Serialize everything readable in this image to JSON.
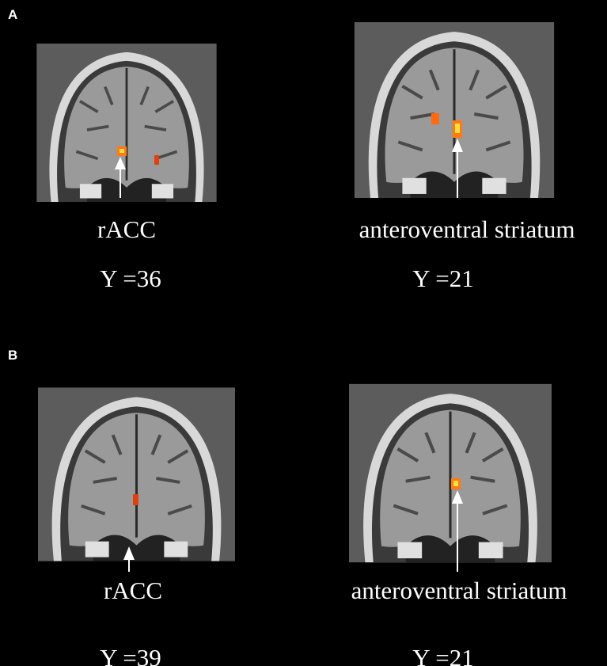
{
  "panels": [
    {
      "label": "A",
      "images": [
        {
          "annotation": "rACC",
          "slice": "Y =36"
        },
        {
          "annotation": "anteroventral striatum",
          "slice": "Y =21"
        }
      ]
    },
    {
      "label": "B",
      "images": [
        {
          "annotation": "rACC",
          "slice": "Y =39"
        },
        {
          "annotation": "anteroventral striatum",
          "slice": "Y =21"
        }
      ]
    }
  ]
}
